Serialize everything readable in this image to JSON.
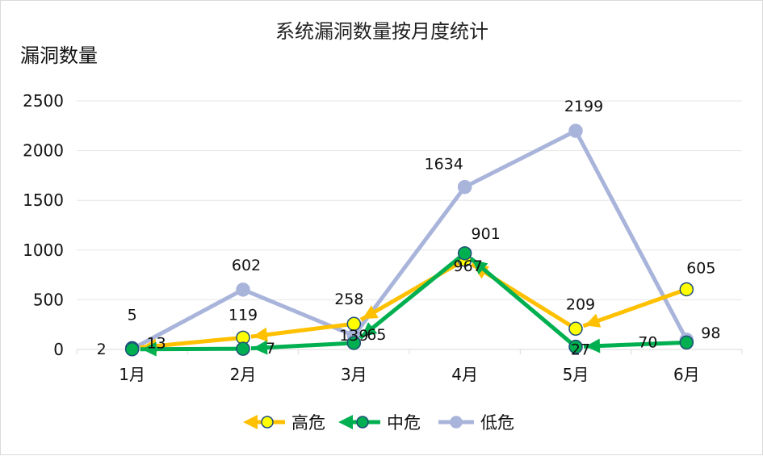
{
  "chart_data": {
    "type": "line",
    "title": "系统漏洞数量按月度统计",
    "ylabel": "漏洞数量",
    "xlabel": "",
    "categories": [
      "1月",
      "2月",
      "3月",
      "4月",
      "5月",
      "6月"
    ],
    "ylim": [
      0,
      2500
    ],
    "yticks": [
      0,
      500,
      1000,
      1500,
      2000,
      2500
    ],
    "grid": true,
    "legend": "bottom",
    "series": [
      {
        "name": "高危",
        "values": [
          13,
          119,
          258,
          901,
          209,
          605
        ],
        "color": "#FFC000",
        "marker_fill": "#FFFF00",
        "marker_stroke": "#1F4E79",
        "arrow": true
      },
      {
        "name": "中危",
        "values": [
          2,
          7,
          65,
          967,
          27,
          70
        ],
        "color": "#00B050",
        "marker_fill": "#00B050",
        "marker_stroke": "#1F4E79",
        "arrow": true
      },
      {
        "name": "低危",
        "values": [
          5,
          602,
          139,
          1634,
          2199,
          98
        ],
        "color": "#A9B4DB",
        "marker_fill": "#A9B4DB",
        "marker_stroke": "#A9B4DB",
        "arrow": false
      }
    ]
  }
}
